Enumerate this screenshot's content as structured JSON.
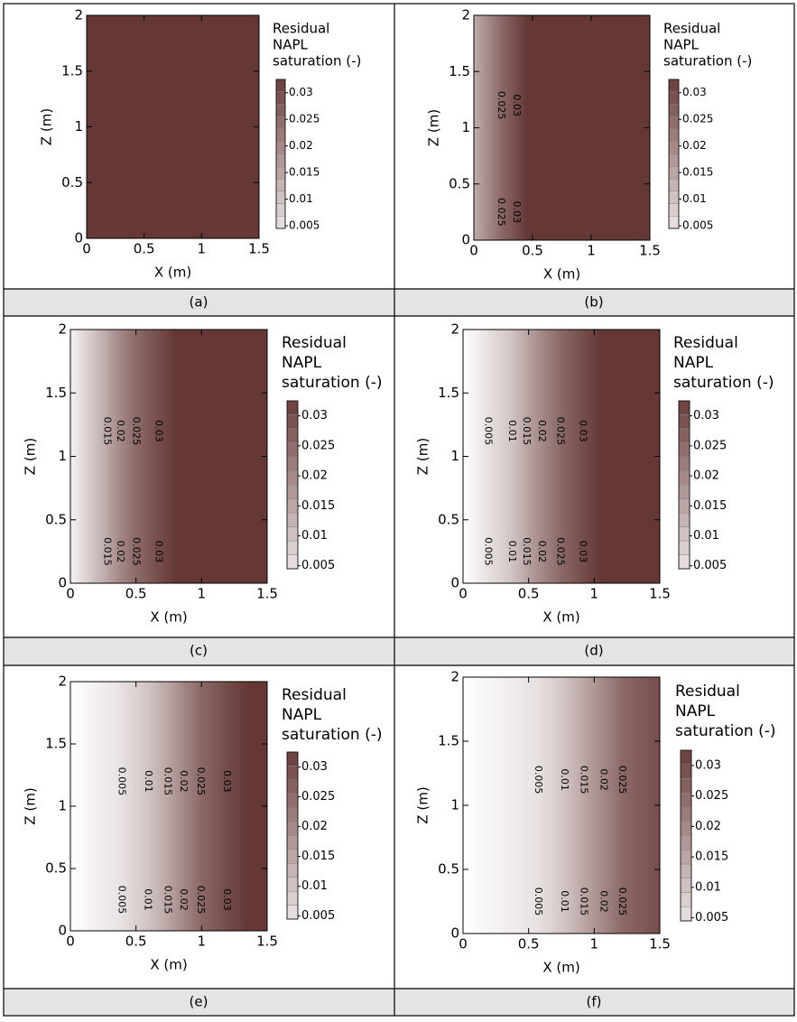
{
  "chart_data": [
    {
      "type": "contour",
      "caption": "(a)",
      "x_label": "X (m)",
      "y_label": "Z (m)",
      "xlim": [
        0,
        1.5
      ],
      "xticks": [
        0,
        0.5,
        1,
        1.5
      ],
      "ylim": [
        0,
        2
      ],
      "yticks": [
        0,
        0.5,
        1,
        1.5,
        2
      ],
      "colorbar_title": [
        "Residual",
        "NAPL",
        "saturation (-)"
      ],
      "colorbar_lim": [
        0.0045,
        0.0325
      ],
      "colorbar_ticks": [
        0.005,
        0.01,
        0.015,
        0.02,
        0.025,
        0.03
      ],
      "color_range": [
        0,
        0.0335
      ],
      "colors": [
        "#ffffff",
        "#653836"
      ],
      "x": [
        0,
        1.5
      ],
      "values": [
        0.0335,
        0.0335
      ],
      "contour_levels": [],
      "contour_x": [],
      "contour_label_z": [
        1.2,
        0.25
      ]
    },
    {
      "type": "contour",
      "caption": "(b)",
      "x_label": "X (m)",
      "y_label": "Z (m)",
      "xlim": [
        0,
        1.5
      ],
      "xticks": [
        0,
        0.5,
        1,
        1.5
      ],
      "ylim": [
        0,
        2
      ],
      "yticks": [
        0,
        0.5,
        1,
        1.5,
        2
      ],
      "colorbar_title": [
        "Residual",
        "NAPL",
        "saturation (-)"
      ],
      "colorbar_lim": [
        0.0045,
        0.0325
      ],
      "colorbar_ticks": [
        0.005,
        0.01,
        0.015,
        0.02,
        0.025,
        0.03
      ],
      "color_range": [
        0,
        0.0335
      ],
      "colors": [
        "#ffffff",
        "#653836"
      ],
      "x": [
        0,
        0.23,
        0.36,
        0.45,
        1.5
      ],
      "values": [
        0.014,
        0.025,
        0.03,
        0.0335,
        0.0335
      ],
      "contour_levels": [
        0.025,
        0.03
      ],
      "contour_x": [
        0.23,
        0.36
      ],
      "contour_label_z": [
        1.2,
        0.25
      ]
    },
    {
      "type": "contour",
      "caption": "(c)",
      "x_label": "X (m)",
      "y_label": "Z (m)",
      "xlim": [
        0,
        1.5
      ],
      "xticks": [
        0,
        0.5,
        1,
        1.5
      ],
      "ylim": [
        0,
        2
      ],
      "yticks": [
        0,
        0.5,
        1,
        1.5,
        2
      ],
      "colorbar_title": [
        "Residual",
        "NAPL",
        "saturation (-)"
      ],
      "colorbar_lim": [
        0.0045,
        0.0325
      ],
      "colorbar_ticks": [
        0.005,
        0.01,
        0.015,
        0.02,
        0.025,
        0.03
      ],
      "color_range": [
        0,
        0.0335
      ],
      "colors": [
        "#ffffff",
        "#653836"
      ],
      "x": [
        0,
        0.28,
        0.38,
        0.5,
        0.67,
        0.8,
        1.5
      ],
      "values": [
        0.002,
        0.015,
        0.02,
        0.025,
        0.03,
        0.0335,
        0.0335
      ],
      "contour_levels": [
        0.015,
        0.02,
        0.025,
        0.03
      ],
      "contour_x": [
        0.28,
        0.38,
        0.5,
        0.67
      ],
      "contour_label_z": [
        1.2,
        0.25
      ]
    },
    {
      "type": "contour",
      "caption": "(d)",
      "x_label": "X (m)",
      "y_label": "Z (m)",
      "xlim": [
        0,
        1.5
      ],
      "xticks": [
        0,
        0.5,
        1,
        1.5
      ],
      "ylim": [
        0,
        2
      ],
      "yticks": [
        0,
        0.5,
        1,
        1.5,
        2
      ],
      "colorbar_title": [
        "Residual",
        "NAPL",
        "saturation (-)"
      ],
      "colorbar_lim": [
        0.0045,
        0.0325
      ],
      "colorbar_ticks": [
        0.005,
        0.01,
        0.015,
        0.02,
        0.025,
        0.03
      ],
      "color_range": [
        0,
        0.0335
      ],
      "colors": [
        "#ffffff",
        "#653836"
      ],
      "x": [
        0,
        0.19,
        0.37,
        0.48,
        0.6,
        0.74,
        0.91,
        1.05,
        1.5
      ],
      "values": [
        0,
        0.005,
        0.01,
        0.015,
        0.02,
        0.025,
        0.03,
        0.0335,
        0.0335
      ],
      "contour_levels": [
        0.005,
        0.01,
        0.015,
        0.02,
        0.025,
        0.03
      ],
      "contour_x": [
        0.19,
        0.37,
        0.48,
        0.6,
        0.74,
        0.91
      ],
      "contour_label_z": [
        1.2,
        0.25
      ]
    },
    {
      "type": "contour",
      "caption": "(e)",
      "x_label": "X (m)",
      "y_label": "Z (m)",
      "xlim": [
        0,
        1.5
      ],
      "xticks": [
        0,
        0.5,
        1,
        1.5
      ],
      "ylim": [
        0,
        2
      ],
      "yticks": [
        0,
        0.5,
        1,
        1.5,
        2
      ],
      "colorbar_title": [
        "Residual",
        "NAPL",
        "saturation (-)"
      ],
      "colorbar_lim": [
        0.0045,
        0.0325
      ],
      "colorbar_ticks": [
        0.005,
        0.01,
        0.015,
        0.02,
        0.025,
        0.03
      ],
      "color_range": [
        0,
        0.0335
      ],
      "colors": [
        "#ffffff",
        "#653836"
      ],
      "x": [
        0,
        0.39,
        0.59,
        0.74,
        0.86,
        0.99,
        1.19,
        1.35,
        1.5
      ],
      "values": [
        0,
        0.005,
        0.01,
        0.015,
        0.02,
        0.025,
        0.03,
        0.0335,
        0.0335
      ],
      "contour_levels": [
        0.005,
        0.01,
        0.015,
        0.02,
        0.025,
        0.03
      ],
      "contour_x": [
        0.39,
        0.59,
        0.74,
        0.86,
        0.99,
        1.19
      ],
      "contour_label_z": [
        1.2,
        0.25
      ]
    },
    {
      "type": "contour",
      "caption": "(f)",
      "x_label": "X (m)",
      "y_label": "Z (m)",
      "xlim": [
        0,
        1.5
      ],
      "xticks": [
        0,
        0.5,
        1,
        1.5
      ],
      "ylim": [
        0,
        2
      ],
      "yticks": [
        0,
        0.5,
        1,
        1.5,
        2
      ],
      "colorbar_title": [
        "Residual",
        "NAPL",
        "saturation (-)"
      ],
      "colorbar_lim": [
        0.0045,
        0.0325
      ],
      "colorbar_ticks": [
        0.005,
        0.01,
        0.015,
        0.02,
        0.025,
        0.03
      ],
      "color_range": [
        0,
        0.0335
      ],
      "colors": [
        "#ffffff",
        "#653836"
      ],
      "x": [
        0,
        0.57,
        0.77,
        0.92,
        1.07,
        1.21,
        1.5
      ],
      "values": [
        0,
        0.005,
        0.01,
        0.015,
        0.02,
        0.025,
        0.03
      ],
      "contour_levels": [
        0.005,
        0.01,
        0.015,
        0.02,
        0.025
      ],
      "contour_x": [
        0.57,
        0.77,
        0.92,
        1.07,
        1.21
      ],
      "contour_label_z": [
        1.2,
        0.25
      ]
    }
  ]
}
